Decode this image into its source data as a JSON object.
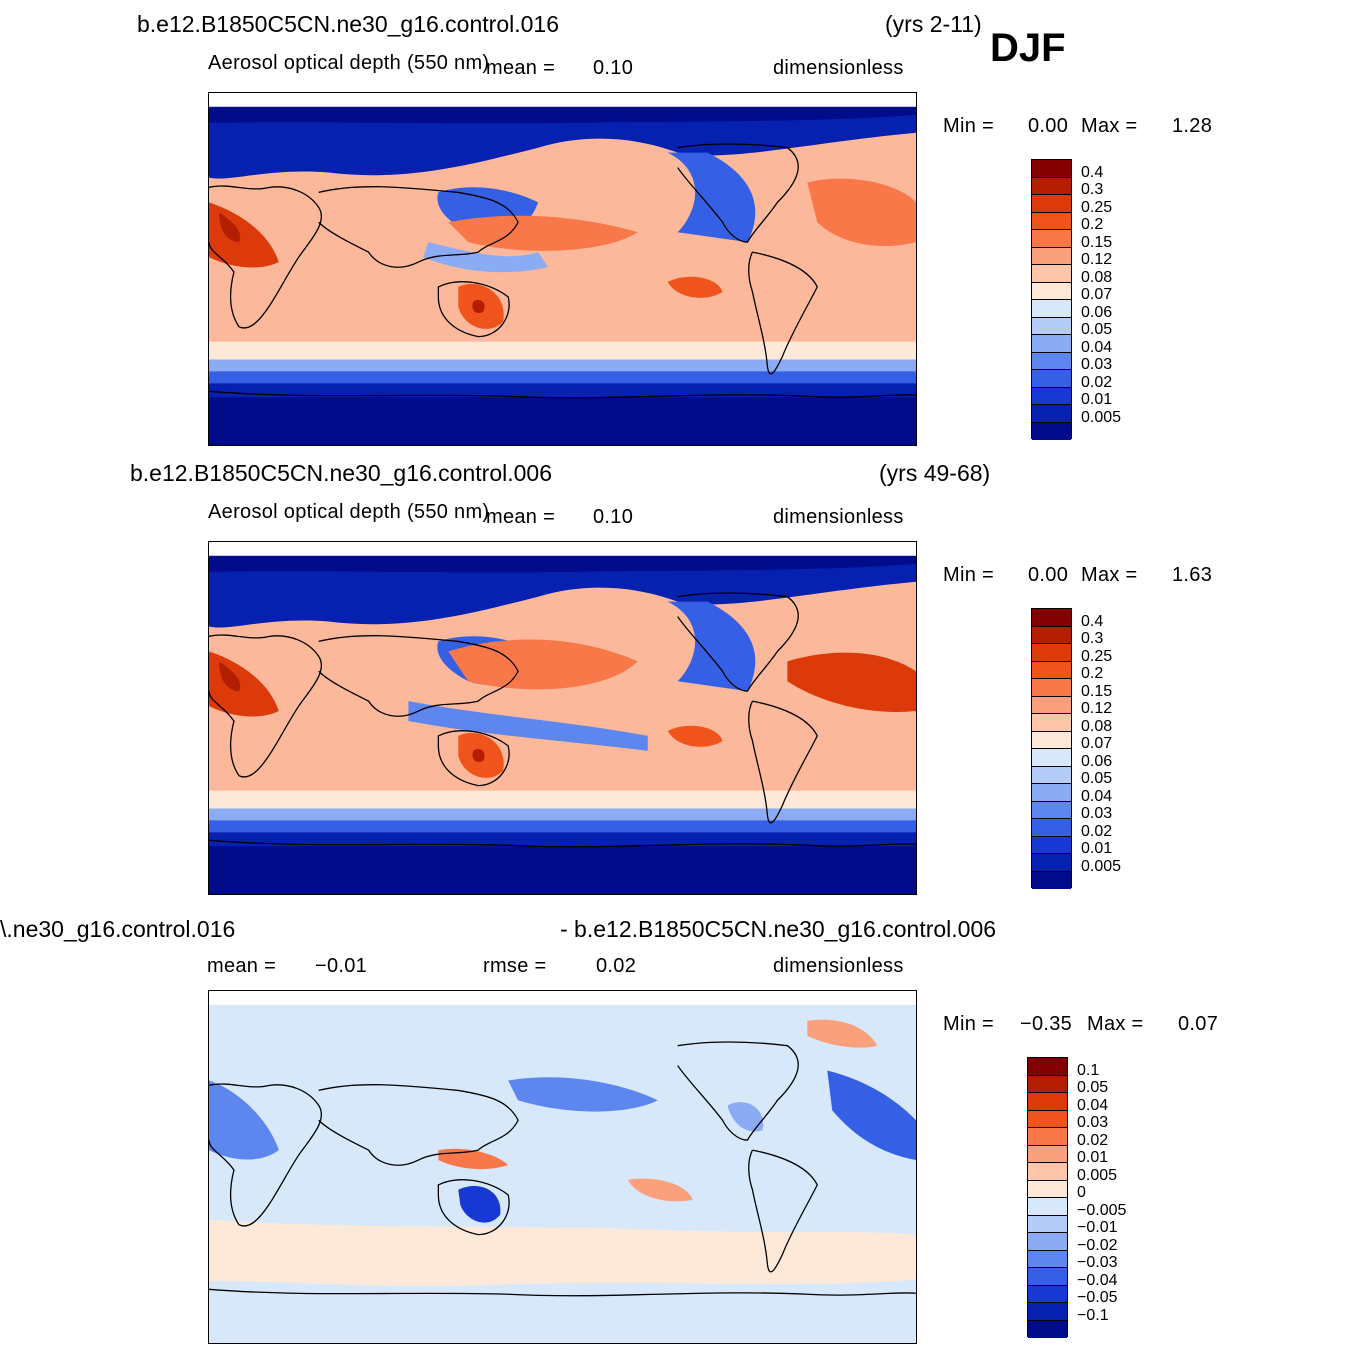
{
  "season": "DJF",
  "chart_data": [
    {
      "type": "heatmap",
      "case": "b.e12.B1850C5CN.ne30_g16.control.016",
      "years": "(yrs 2-11)",
      "title": "Aerosol optical depth (550 nm)",
      "stat_label": "mean =",
      "stat_value": "0.10",
      "units": "dimensionless",
      "min_label": "Min  =",
      "min_value": "0.00",
      "max_label": "Max  =",
      "max_value": "1.28",
      "levels": [
        "0.4",
        "0.3",
        "0.25",
        "0.2",
        "0.15",
        "0.12",
        "0.08",
        "0.07",
        "0.06",
        "0.05",
        "0.04",
        "0.03",
        "0.02",
        "0.01",
        "0.005"
      ],
      "colors": [
        "#820000",
        "#b31d00",
        "#dc3a0a",
        "#f0541c",
        "#f8784a",
        "#fba07c",
        "#fdc6aa",
        "#fee8d8",
        "#d7e8fb",
        "#b3ccf8",
        "#8bacf5",
        "#5d86ef",
        "#3560e6",
        "#1738d2",
        "#0620b0",
        "#000c8a"
      ]
    },
    {
      "type": "heatmap",
      "case": "b.e12.B1850C5CN.ne30_g16.control.006",
      "years": "(yrs 49-68)",
      "title": "Aerosol optical depth (550 nm)",
      "stat_label": "mean =",
      "stat_value": "0.10",
      "units": "dimensionless",
      "min_label": "Min  =",
      "min_value": "0.00",
      "max_label": "Max  =",
      "max_value": "1.63",
      "levels": [
        "0.4",
        "0.3",
        "0.25",
        "0.2",
        "0.15",
        "0.12",
        "0.08",
        "0.07",
        "0.06",
        "0.05",
        "0.04",
        "0.03",
        "0.02",
        "0.01",
        "0.005"
      ],
      "colors": [
        "#820000",
        "#b31d00",
        "#dc3a0a",
        "#f0541c",
        "#f8784a",
        "#fba07c",
        "#fdc6aa",
        "#fee8d8",
        "#d7e8fb",
        "#b3ccf8",
        "#8bacf5",
        "#5d86ef",
        "#3560e6",
        "#1738d2",
        "#0620b0",
        "#000c8a"
      ]
    },
    {
      "type": "heatmap",
      "case_left": "\\.ne30_g16.control.016",
      "case_right": "- b.e12.B1850C5CN.ne30_g16.control.006",
      "stat_label": "mean =",
      "stat_value": "−0.01",
      "rmse_label": "rmse =",
      "rmse_value": "0.02",
      "units": "dimensionless",
      "min_label": "Min  =",
      "min_value": "−0.35",
      "max_label": "Max  =",
      "max_value": "0.07",
      "levels": [
        "0.1",
        "0.05",
        "0.04",
        "0.03",
        "0.02",
        "0.01",
        "0.005",
        "0",
        "−0.005",
        "−0.01",
        "−0.02",
        "−0.03",
        "−0.04",
        "−0.05",
        "−0.1"
      ],
      "colors": [
        "#820000",
        "#b31d00",
        "#dc3a0a",
        "#f0541c",
        "#f8784a",
        "#fba07c",
        "#fdc6aa",
        "#fee8d8",
        "#d7e8fb",
        "#b3ccf8",
        "#8bacf5",
        "#5d86ef",
        "#3560e6",
        "#1738d2",
        "#0620b0",
        "#000c8a"
      ]
    }
  ]
}
